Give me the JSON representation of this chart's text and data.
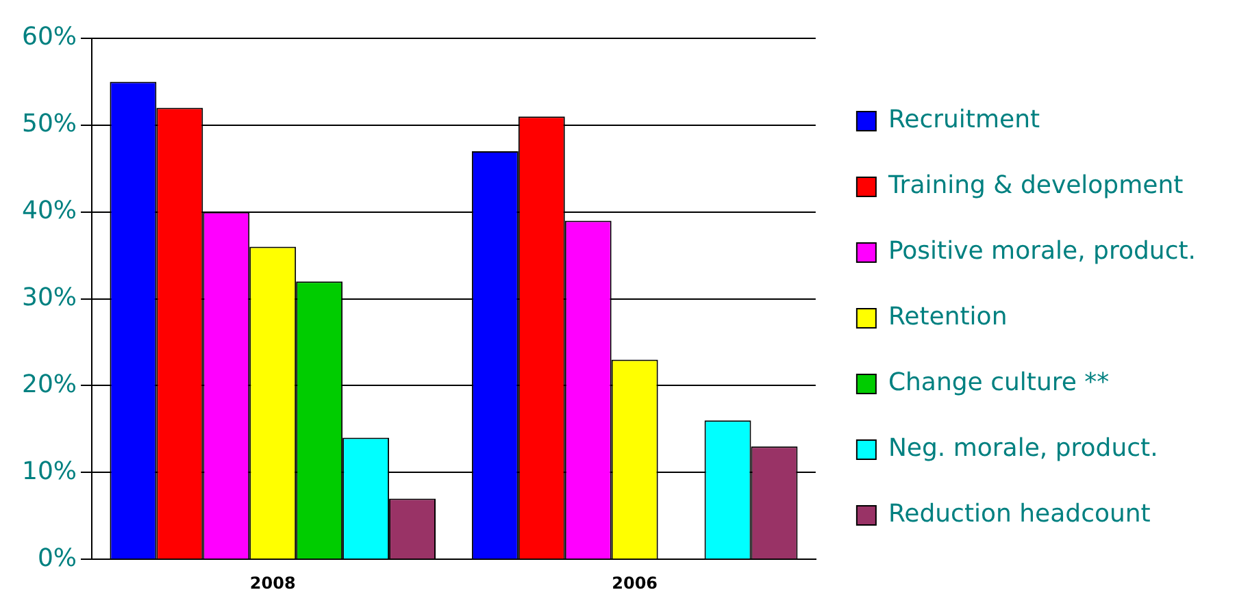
{
  "chart_data": {
    "type": "bar",
    "categories": [
      "2008",
      "2006"
    ],
    "series": [
      {
        "name": "Recruitment",
        "color": "#0000ff",
        "values": [
          55,
          47
        ]
      },
      {
        "name": "Training & development",
        "color": "#ff0000",
        "values": [
          52,
          51
        ]
      },
      {
        "name": "Positive morale, product.",
        "color": "#ff00ff",
        "values": [
          40,
          39
        ]
      },
      {
        "name": "Retention",
        "color": "#ffff00",
        "values": [
          36,
          23
        ]
      },
      {
        "name": "Change culture **",
        "color": "#00cc00",
        "values": [
          32,
          null
        ]
      },
      {
        "name": "Neg. morale, product.",
        "color": "#00ffff",
        "values": [
          14,
          16
        ]
      },
      {
        "name": "Reduction headcount",
        "color": "#993366",
        "values": [
          7,
          13
        ]
      }
    ],
    "ylim": [
      0,
      60
    ],
    "yticks": [
      {
        "value": 0,
        "label": "0%"
      },
      {
        "value": 10,
        "label": "10%"
      },
      {
        "value": 20,
        "label": "20%"
      },
      {
        "value": 30,
        "label": "30%"
      },
      {
        "value": 40,
        "label": "40%"
      },
      {
        "value": 50,
        "label": "50%"
      },
      {
        "value": 60,
        "label": "60%"
      }
    ],
    "grid": "y",
    "legend": "right"
  }
}
